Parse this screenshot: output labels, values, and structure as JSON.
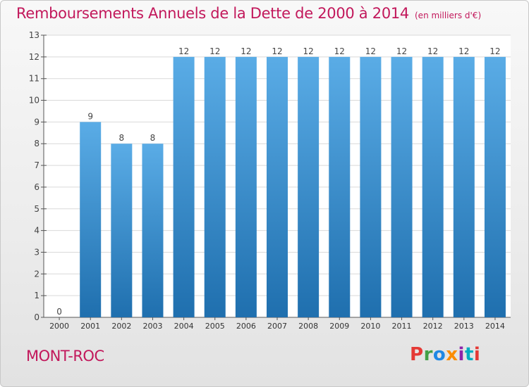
{
  "header": {
    "title": "Remboursements Annuels de la Dette de 2000 à 2014",
    "unit": "(en milliers d'€)"
  },
  "footer": {
    "commune": "MONT-ROC",
    "logo_text": "Proxiti",
    "logo_colors": [
      "#e53935",
      "#43a047",
      "#1e88e5",
      "#fb8c00",
      "#8e24aa",
      "#00acc1",
      "#e53935"
    ]
  },
  "colors": {
    "accent": "#c2185b",
    "bar_top": "#5aace6",
    "bar_bottom": "#1f6fae"
  },
  "chart_data": {
    "type": "bar",
    "title": "Remboursements Annuels de la Dette de 2000 à 2014",
    "subtitle": "(en milliers d'€)",
    "categories": [
      "2000",
      "2001",
      "2002",
      "2003",
      "2004",
      "2005",
      "2006",
      "2007",
      "2008",
      "2009",
      "2010",
      "2011",
      "2012",
      "2013",
      "2014"
    ],
    "values": [
      0,
      9,
      8,
      8,
      12,
      12,
      12,
      12,
      12,
      12,
      12,
      12,
      12,
      12,
      12
    ],
    "value_labels": [
      "0",
      "9",
      "8",
      "8",
      "12",
      "12",
      "12",
      "12",
      "12",
      "12",
      "12",
      "12",
      "12",
      "12",
      "12"
    ],
    "ylim": [
      0,
      13
    ],
    "yticks": [
      0,
      1,
      2,
      3,
      4,
      5,
      6,
      7,
      8,
      9,
      10,
      11,
      12,
      13
    ],
    "grid": "horizontal",
    "legend": "none",
    "xlabel": "",
    "ylabel": ""
  }
}
